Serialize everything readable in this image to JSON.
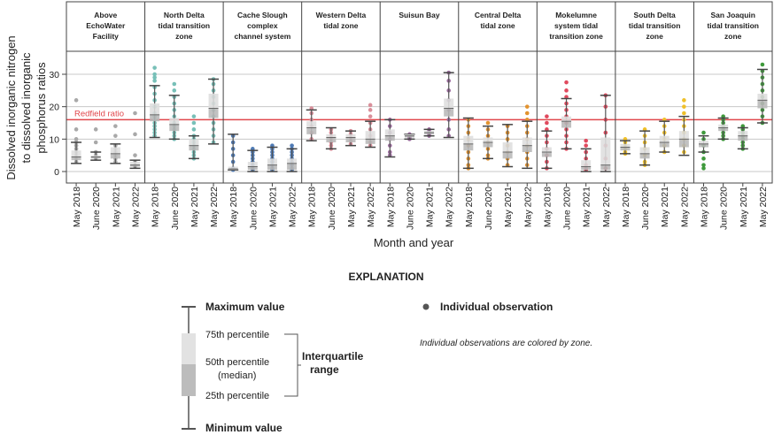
{
  "chart_data": {
    "type": "boxplot",
    "ylabel_lines": [
      "Dissolved inorganic nitrogen",
      "to dissolved inorganic",
      "phosphorus ratios"
    ],
    "xlabel": "Month and year",
    "ylim": [
      -3,
      36
    ],
    "yticks": [
      "0",
      "10",
      "20",
      "30"
    ],
    "reference_line": {
      "label": "Redfield ratio",
      "value": 16,
      "color": "#e0474c"
    },
    "categories": [
      "May 2018",
      "June 2020",
      "May 2021",
      "May 2022"
    ],
    "zones": [
      {
        "name_lines": [
          "Above",
          "EchoWater",
          "Facility"
        ],
        "color": "#a9a9a9",
        "boxes": [
          {
            "min": 2.5,
            "q1": 3.5,
            "median": 4.5,
            "q3": 6.5,
            "max": 9,
            "points": [
              22,
              13,
              10,
              9,
              8,
              7,
              6,
              5,
              4,
              3
            ]
          },
          {
            "min": 3.5,
            "q1": 4,
            "median": 4.5,
            "q3": 5,
            "max": 6,
            "points": [
              13,
              9,
              6,
              5,
              4.5,
              4
            ]
          },
          {
            "min": 2.5,
            "q1": 4,
            "median": 5.5,
            "q3": 7.5,
            "max": 8.5,
            "points": [
              14,
              11,
              8,
              7,
              6,
              5,
              4,
              3
            ]
          },
          {
            "min": 1,
            "q1": 1.5,
            "median": 2,
            "q3": 3,
            "max": 3.5,
            "points": [
              18,
              11.5,
              5,
              3,
              2,
              1.5
            ]
          }
        ]
      },
      {
        "name_lines": [
          "North Delta",
          "tidal transition",
          "zone"
        ],
        "color": "#78c0b8",
        "boxes": [
          {
            "min": 10.5,
            "q1": 15.5,
            "median": 17.5,
            "q3": 21,
            "max": 26.5,
            "points": [
              32,
              30,
              29,
              28,
              26,
              24,
              22,
              20,
              18,
              17,
              16,
              15,
              14,
              13,
              12,
              11
            ]
          },
          {
            "min": 10,
            "q1": 12.5,
            "median": 14.5,
            "q3": 16.5,
            "max": 23.5,
            "points": [
              27,
              25,
              23,
              21,
              19,
              17,
              15,
              14,
              13,
              12,
              11,
              10
            ]
          },
          {
            "min": 4,
            "q1": 6.5,
            "median": 8,
            "q3": 10,
            "max": 11,
            "points": [
              17,
              15,
              13,
              11,
              10,
              9,
              8,
              7,
              6,
              5,
              4
            ]
          },
          {
            "min": 8.5,
            "q1": 16.5,
            "median": 19.5,
            "q3": 24,
            "max": 28.5,
            "points": [
              28.5,
              27,
              25,
              23,
              21,
              19,
              17,
              15,
              13,
              11,
              9
            ]
          }
        ]
      },
      {
        "name_lines": [
          "Cache Slough",
          "complex",
          "channel system"
        ],
        "color": "#4f7bb5",
        "boxes": [
          {
            "min": 0.5,
            "q1": 0.5,
            "median": 0.8,
            "q3": 1.5,
            "max": 11.5,
            "points": [
              11,
              9,
              7,
              5,
              3,
              1,
              0.5
            ]
          },
          {
            "min": 0,
            "q1": 0.5,
            "median": 1.5,
            "q3": 3,
            "max": 6.5,
            "points": [
              7,
              6,
              5,
              4,
              3,
              2,
              1,
              0.5
            ]
          },
          {
            "min": 0,
            "q1": 0.5,
            "median": 2,
            "q3": 4,
            "max": 7.5,
            "points": [
              8,
              7,
              6,
              5,
              4,
              3,
              2,
              1,
              0.5
            ]
          },
          {
            "min": 0,
            "q1": 0.5,
            "median": 2.5,
            "q3": 4,
            "max": 7,
            "points": [
              8,
              7,
              6,
              5,
              4,
              3,
              2,
              1,
              0.5
            ]
          }
        ]
      },
      {
        "name_lines": [
          "Western Delta",
          "tidal zone",
          ""
        ],
        "color": "#d98f9a",
        "boxes": [
          {
            "min": 9.5,
            "q1": 11.5,
            "median": 13.5,
            "q3": 15.5,
            "max": 19,
            "points": [
              19.5,
              18,
              16,
              14,
              12,
              10
            ]
          },
          {
            "min": 7,
            "q1": 9,
            "median": 10.5,
            "q3": 11.5,
            "max": 13.5,
            "points": [
              13,
              12,
              11,
              10,
              9,
              8,
              7
            ]
          },
          {
            "min": 8,
            "q1": 9,
            "median": 10.5,
            "q3": 11.5,
            "max": 12.5,
            "points": [
              12.5,
              11.5,
              10.5,
              9.5,
              8.5
            ]
          },
          {
            "min": 7.5,
            "q1": 8.5,
            "median": 10,
            "q3": 12.5,
            "max": 15.5,
            "points": [
              20.5,
              19,
              17,
              15,
              13,
              11,
              9,
              8
            ]
          }
        ]
      },
      {
        "name_lines": [
          "Suisun Bay",
          "",
          ""
        ],
        "color": "#9c6b9e",
        "boxes": [
          {
            "min": 4.5,
            "q1": 9.5,
            "median": 11,
            "q3": 13,
            "max": 16,
            "points": [
              16,
              14,
              12,
              10,
              8,
              6,
              5
            ]
          },
          {
            "min": 10,
            "q1": 10.5,
            "median": 11,
            "q3": 11.5,
            "max": 11.5,
            "points": [
              11.5,
              11,
              10.5,
              10
            ]
          },
          {
            "min": 11,
            "q1": 11.5,
            "median": 12,
            "q3": 12.5,
            "max": 13,
            "points": [
              13,
              12.5,
              12,
              11.5,
              11
            ]
          },
          {
            "min": 10.5,
            "q1": 17,
            "median": 19.5,
            "q3": 22.5,
            "max": 30.5,
            "points": [
              30.5,
              28,
              25,
              22,
              19,
              16,
              13,
              11
            ]
          }
        ]
      },
      {
        "name_lines": [
          "Central Delta",
          "tidal zone",
          ""
        ],
        "color": "#e3932f",
        "boxes": [
          {
            "min": 1,
            "q1": 6.5,
            "median": 8.5,
            "q3": 11,
            "max": 16.5,
            "points": [
              16,
              14,
              12,
              10,
              8,
              6,
              4,
              2,
              1
            ]
          },
          {
            "min": 4,
            "q1": 7.5,
            "median": 9,
            "q3": 10.5,
            "max": 14,
            "points": [
              15,
              13,
              11,
              9,
              7,
              5,
              4
            ]
          },
          {
            "min": 1.5,
            "q1": 4,
            "median": 6,
            "q3": 9,
            "max": 14.5,
            "points": [
              14,
              12,
              10,
              8,
              6,
              4,
              2
            ]
          },
          {
            "min": 1,
            "q1": 6,
            "median": 8,
            "q3": 10.5,
            "max": 15.5,
            "points": [
              20,
              18,
              16,
              14,
              12,
              10,
              8,
              6,
              4,
              2
            ]
          }
        ]
      },
      {
        "name_lines": [
          "Mokelumne",
          "system tidal",
          "transition zone"
        ],
        "color": "#e04a5e",
        "boxes": [
          {
            "min": 1,
            "q1": 4.5,
            "median": 6,
            "q3": 7.5,
            "max": 12.5,
            "points": [
              17,
              15,
              13,
              11,
              9,
              7,
              5,
              3,
              1
            ]
          },
          {
            "min": 7,
            "q1": 13.5,
            "median": 15.5,
            "q3": 17,
            "max": 22.5,
            "points": [
              27.5,
              25,
              23,
              21,
              19,
              17,
              15,
              13,
              11,
              9,
              7
            ]
          },
          {
            "min": 0,
            "q1": 0.5,
            "median": 1.5,
            "q3": 3.5,
            "max": 7,
            "points": [
              9.5,
              8,
              6,
              4,
              2,
              1,
              0.5
            ]
          },
          {
            "min": 0,
            "q1": 0.5,
            "median": 2,
            "q3": 10.5,
            "max": 23.5,
            "points": [
              23.5,
              20,
              16,
              12,
              8,
              4,
              1
            ]
          }
        ]
      },
      {
        "name_lines": [
          "South Delta",
          "tidal transition",
          "zone"
        ],
        "color": "#efc02a",
        "boxes": [
          {
            "min": 5.5,
            "q1": 6.5,
            "median": 7.5,
            "q3": 8.5,
            "max": 9.5,
            "points": [
              10,
              9,
              8,
              7,
              6,
              5.5
            ]
          },
          {
            "min": 2,
            "q1": 4,
            "median": 5.5,
            "q3": 7.5,
            "max": 12.5,
            "points": [
              13,
              11,
              9,
              7,
              5,
              3,
              2
            ]
          },
          {
            "min": 6,
            "q1": 7.5,
            "median": 9,
            "q3": 11,
            "max": 15.5,
            "points": [
              16,
              14,
              12,
              10,
              8,
              6
            ]
          },
          {
            "min": 5,
            "q1": 7.5,
            "median": 10,
            "q3": 12.5,
            "max": 17,
            "points": [
              22,
              20,
              18,
              16,
              14,
              12,
              10,
              8,
              6
            ]
          }
        ]
      },
      {
        "name_lines": [
          "San Joaquin",
          "tidal transition",
          "zone"
        ],
        "color": "#3f9a3c",
        "boxes": [
          {
            "min": 6,
            "q1": 7.5,
            "median": 8.5,
            "q3": 9.5,
            "max": 11,
            "points": [
              12,
              10,
              8,
              6,
              4,
              2,
              1
            ]
          },
          {
            "min": 10,
            "q1": 12.5,
            "median": 13.5,
            "q3": 14.5,
            "max": 16.5,
            "points": [
              17,
              16,
              15,
              14,
              13,
              12,
              11,
              10
            ]
          },
          {
            "min": 7,
            "q1": 9.5,
            "median": 11,
            "q3": 12.5,
            "max": 13.5,
            "points": [
              14,
              13,
              12,
              11,
              10,
              9,
              8,
              7
            ]
          },
          {
            "min": 15,
            "q1": 19.5,
            "median": 22,
            "q3": 24,
            "max": 31.5,
            "points": [
              33,
              31,
              29,
              27,
              25,
              23,
              21,
              19,
              17,
              15
            ]
          }
        ]
      }
    ]
  },
  "explanation": {
    "title": "EXPLANATION",
    "max_label": "Maximum value",
    "p75_label": "75th percentile",
    "median_label_lines": [
      "50th percentile",
      "(median)"
    ],
    "p25_label": "25th percentile",
    "min_label": "Minimum value",
    "iqr_label_lines": [
      "Interquartile",
      "range"
    ],
    "observation_label": "Individual observation",
    "note": "Individual observations are colored by zone."
  }
}
